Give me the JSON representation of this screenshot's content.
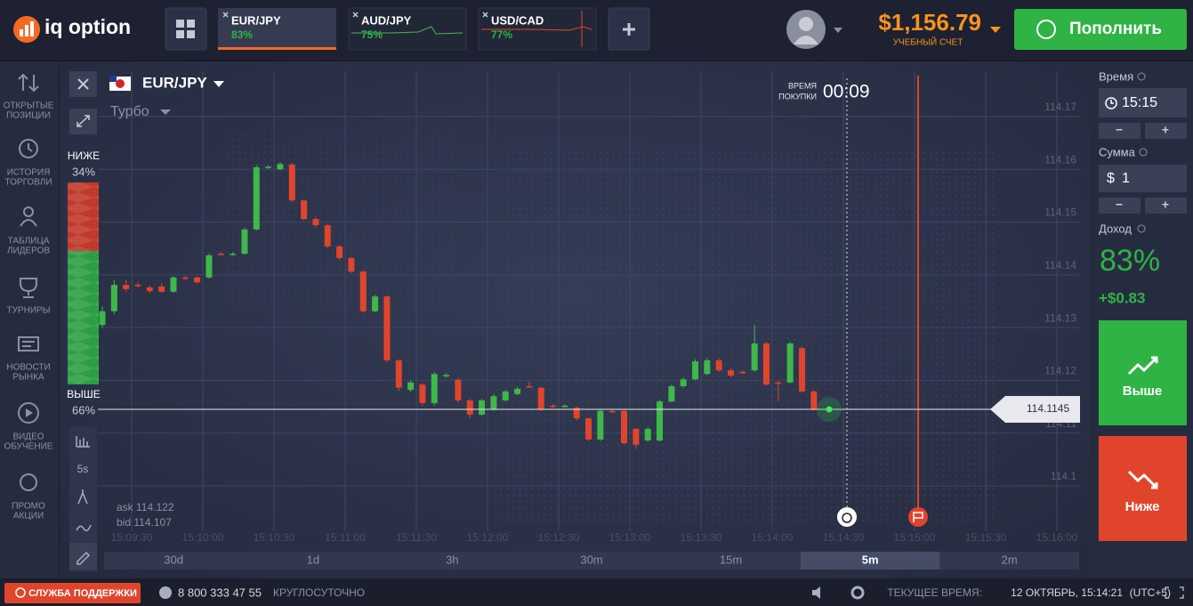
{
  "header": {
    "logo": "iq option",
    "tabs": [
      {
        "asset": "EUR/JPY",
        "profit": "83%"
      },
      {
        "asset": "AUD/JPY",
        "profit": "75%"
      },
      {
        "asset": "USD/CAD",
        "profit": "77%"
      }
    ],
    "balance": "$1,156.79",
    "account_type": "УЧЕБНЫЙ СЧЕТ",
    "deposit_button": "Пополнить"
  },
  "sidebar": [
    {
      "lines": [
        "ОТКРЫТЫЕ",
        "ПОЗИЦИИ"
      ]
    },
    {
      "lines": [
        "ИСТОРИЯ",
        "ТОРГОВЛИ"
      ]
    },
    {
      "lines": [
        "ТАБЛИЦА",
        "ЛИДЕРОВ"
      ]
    },
    {
      "lines": [
        "ТУРНИРЫ"
      ]
    },
    {
      "lines": [
        "НОВОСТИ",
        "РЫНКА"
      ]
    },
    {
      "lines": [
        "ВИДЕО",
        "ОБУЧЕНИЕ"
      ]
    },
    {
      "lines": [
        "ПРОМО",
        "АКЦИИ"
      ]
    }
  ],
  "chart_data": {
    "type": "candlestick",
    "asset": "EUR/JPY",
    "mode": "Турбо",
    "sentiment": {
      "below": {
        "label": "НИЖЕ",
        "value": 34,
        "value_label": "34%",
        "color": "#c0392b"
      },
      "above": {
        "label": "ВЫШЕ",
        "value": 66,
        "value_label": "66%",
        "color": "#2e9e45"
      }
    },
    "purchase_time_label": [
      "ВРЕМЯ",
      "ПОКУПКИ"
    ],
    "purchase_timer": "00:09",
    "ask": "ask 114.122",
    "bid": "bid 114.107",
    "tool_label": "5s",
    "up_color": "#3eb84a",
    "down_color": "#e0452b",
    "open": [
      114.1305,
      114.1331,
      114.1381,
      114.1381,
      114.1376,
      114.1378,
      114.1368,
      114.1395,
      114.1395,
      114.1395,
      114.144,
      114.1439,
      114.144,
      114.1486,
      114.1604,
      114.16,
      114.1609,
      114.1541,
      114.1506,
      114.1494,
      114.1454,
      114.1432,
      114.1406,
      114.1331,
      114.1359,
      114.1238,
      114.1182,
      114.1192,
      114.1157,
      114.1209,
      114.1201,
      114.1162,
      114.1135,
      114.1145,
      114.1162,
      114.1174,
      114.1189,
      114.1186,
      114.1152,
      114.1151,
      114.1148,
      114.1128,
      114.1088,
      114.1142,
      114.1142,
      114.1108,
      114.1086,
      114.1086,
      114.116,
      114.1189,
      114.1202,
      114.1212,
      114.1238,
      114.1219,
      114.1216,
      114.1219,
      114.127,
      114.1196,
      114.1196,
      114.1261,
      114.1179
    ],
    "high": [
      114.134,
      114.139,
      114.139,
      114.1386,
      114.138,
      114.1384,
      114.1398,
      114.1398,
      114.1397,
      114.144,
      114.1443,
      114.1443,
      114.149,
      114.1608,
      114.1608,
      114.1614,
      114.1612,
      114.1543,
      114.151,
      114.1497,
      114.1456,
      114.1434,
      114.1408,
      114.1362,
      114.1361,
      114.124,
      114.12,
      114.1195,
      114.1216,
      114.1214,
      114.1205,
      114.1165,
      114.1165,
      114.1174,
      114.1182,
      114.1188,
      114.1198,
      114.1188,
      114.1155,
      114.1155,
      114.115,
      114.113,
      114.1145,
      114.1146,
      114.1145,
      114.111,
      114.1112,
      114.1163,
      114.1192,
      114.1206,
      114.124,
      114.1242,
      114.1242,
      114.1222,
      114.1219,
      114.1305,
      114.1273,
      114.12,
      114.1273,
      114.1264,
      114.1181
    ],
    "low": [
      114.13,
      114.1325,
      114.1368,
      114.1376,
      114.1365,
      114.1366,
      114.1366,
      114.139,
      114.1384,
      114.1393,
      114.1437,
      114.1436,
      114.1438,
      114.1484,
      114.16,
      114.1598,
      114.1538,
      114.1503,
      114.149,
      114.145,
      114.1428,
      114.1403,
      114.1328,
      114.1329,
      114.1235,
      114.118,
      114.1178,
      114.1152,
      114.1152,
      114.1205,
      114.1158,
      114.1128,
      114.1132,
      114.1142,
      114.116,
      114.1172,
      114.1186,
      114.1142,
      114.1148,
      114.1148,
      114.1125,
      114.1085,
      114.1085,
      114.1138,
      114.1078,
      114.107,
      114.1083,
      114.1084,
      114.1158,
      114.1186,
      114.12,
      114.121,
      114.1216,
      114.1206,
      114.1212,
      114.1216,
      114.119,
      114.116,
      114.1194,
      114.1176,
      114.1143
    ],
    "close": [
      114.1331,
      114.1381,
      114.1373,
      114.138,
      114.1369,
      114.1368,
      114.1395,
      114.1394,
      114.1386,
      114.1437,
      114.1439,
      114.144,
      114.1486,
      114.1604,
      114.1605,
      114.161,
      114.1541,
      114.1506,
      114.1494,
      114.1454,
      114.1432,
      114.1406,
      114.1331,
      114.1359,
      114.1238,
      114.1186,
      114.1196,
      114.1157,
      114.1212,
      114.121,
      114.1162,
      114.1135,
      114.1162,
      114.117,
      114.1179,
      114.1184,
      114.1188,
      114.1145,
      114.1151,
      114.1152,
      114.1128,
      114.1088,
      114.1142,
      114.1141,
      114.1081,
      114.1078,
      114.1108,
      114.116,
      114.1189,
      114.1202,
      114.1236,
      114.1238,
      114.1219,
      114.1209,
      114.1215,
      114.127,
      114.1192,
      114.1195,
      114.127,
      114.1179,
      114.1145
    ],
    "ylim": [
      114.0914,
      114.1786
    ],
    "yticks": [
      114.17,
      114.16,
      114.15,
      114.14,
      114.13,
      114.12,
      114.11,
      114.1
    ],
    "xticks": [
      "15:09:30",
      "15:10:00",
      "15:10:30",
      "15:11:00",
      "15:11:30",
      "15:12:00",
      "15:12:30",
      "15:13:00",
      "15:13:30",
      "15:14:00",
      "15:14:30",
      "15:15:00",
      "15:15:30",
      "15:16:00"
    ],
    "grid": true,
    "current_price": 114.1145,
    "timeframes": [
      "30d",
      "1d",
      "3h",
      "30m",
      "15m",
      "5m",
      "2m"
    ],
    "active_timeframe": 5
  },
  "trade_panel": {
    "time_label": "Время",
    "time_value": "15:15",
    "amount_label": "Сумма",
    "currency": "$",
    "amount_value": "1",
    "minus": "−",
    "plus": "+",
    "profit_label": "Доход",
    "profit_percent": "83%",
    "profit_amount": "+$0.83",
    "call_button": "Выше",
    "put_button": "Ниже"
  },
  "footer": {
    "support_button": "СЛУЖБА ПОДДЕРЖКИ",
    "phone": "8 800 333 47 55",
    "hours": "КРУГЛОСУТОЧНО",
    "current_time_label": "ТЕКУЩЕЕ ВРЕМЯ:",
    "current_time": "12 ОКТЯБРЬ, 15:14:21",
    "timezone": "(UTC+5)"
  }
}
